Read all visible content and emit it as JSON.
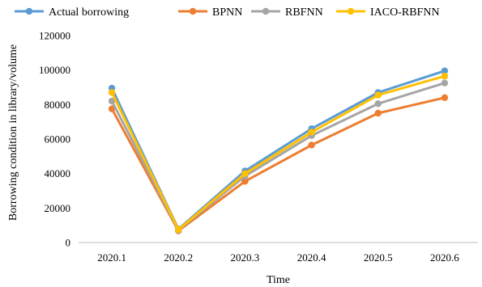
{
  "chart_data": {
    "type": "line",
    "title": "",
    "xlabel": "Time",
    "ylabel": "Borrowing condition in library/volume",
    "categories": [
      "2020.1",
      "2020.2",
      "2020.3",
      "2020.4",
      "2020.5",
      "2020.6"
    ],
    "ylim": [
      0,
      120000
    ],
    "yticks": [
      "0",
      "20000",
      "40000",
      "60000",
      "80000",
      "100000",
      "120000"
    ],
    "grid": false,
    "legend_position": "top",
    "series": [
      {
        "name": "Actual borrowing",
        "color": "#5B9BD5",
        "values": [
          89500,
          7800,
          41500,
          66000,
          87000,
          99500
        ]
      },
      {
        "name": "BPNN",
        "color": "#ED7D31",
        "values": [
          77500,
          6800,
          35500,
          56500,
          75000,
          84000
        ]
      },
      {
        "name": "RBFNN",
        "color": "#A5A5A5",
        "values": [
          82000,
          7200,
          38500,
          62000,
          80500,
          92500
        ]
      },
      {
        "name": "IACO-RBFNN",
        "color": "#FFC000",
        "values": [
          87000,
          7500,
          40000,
          64000,
          85500,
          96500
        ]
      }
    ]
  }
}
